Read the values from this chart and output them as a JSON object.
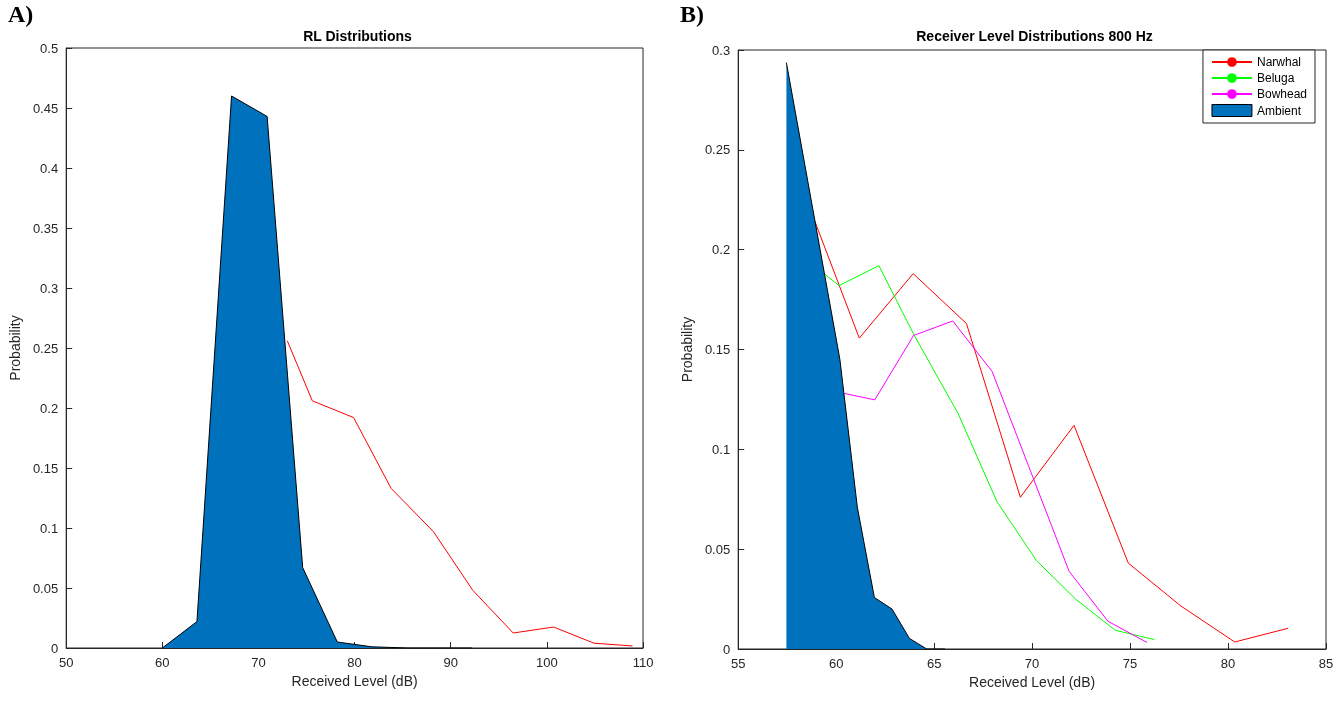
{
  "chart_data": [
    {
      "type": "line",
      "title": "RL Distributions",
      "xlabel": "Received Level (dB)",
      "ylabel": "Probability",
      "annotations": [
        "A)"
      ],
      "xlim": [
        50,
        110
      ],
      "xticks": [
        50,
        60,
        70,
        80,
        90,
        100,
        110
      ],
      "ylim": [
        0,
        0.5
      ],
      "yticks": [
        0,
        0.05,
        0.1,
        0.15,
        0.2,
        0.25,
        0.3,
        0.35,
        0.4,
        0.45,
        0.5
      ],
      "grid": false,
      "legend": false,
      "marker": "none",
      "line_style": "solid",
      "series": [
        {
          "color": "#ff0000",
          "x": [
            73,
            75.6,
            79.9,
            83.8,
            88.2,
            92.3,
            96.5,
            100.7,
            104.9,
            108.9
          ],
          "values": [
            0.256,
            0.206,
            0.192,
            0.133,
            0.097,
            0.048,
            0.0125,
            0.0175,
            0.004,
            0.0017
          ]
        },
        {
          "type": "area",
          "color": "#0072bd",
          "x": [
            60,
            63.6,
            67.2,
            70.9,
            74.6,
            78.2,
            81.8,
            85.5,
            92.2
          ],
          "values": [
            0,
            0.022,
            0.46,
            0.443,
            0.067,
            0.005,
            0.001,
            0,
            0
          ]
        }
      ]
    },
    {
      "type": "line",
      "title": "Receiver Level Distributions 800 Hz",
      "xlabel": "Received Level (dB)",
      "ylabel": "Probability",
      "annotations": [
        "B)"
      ],
      "xlim": [
        55,
        85
      ],
      "xticks": [
        55,
        60,
        65,
        70,
        75,
        80,
        85
      ],
      "ylim": [
        0,
        0.3
      ],
      "yticks": [
        0,
        0.05,
        0.1,
        0.15,
        0.2,
        0.25,
        0.3
      ],
      "grid": false,
      "legend": "top right",
      "marker": "none",
      "line_style": "solid",
      "series": [
        {
          "name": "Narwhal",
          "color": "#ff0000",
          "x": [
            58.9,
            61.18,
            63.93,
            66.65,
            69.4,
            72.14,
            74.91,
            77.6,
            80.34,
            83.07
          ],
          "values": [
            0.2145,
            0.1557,
            0.188,
            0.163,
            0.076,
            0.112,
            0.043,
            0.0215,
            0.0035,
            0.0104
          ]
        },
        {
          "name": "Beluga",
          "color": "#00ff00",
          "x": [
            59.32,
            60.15,
            62.18,
            63.99,
            66.22,
            68.21,
            70.23,
            72.24,
            74.24,
            76.24
          ],
          "values": [
            0.1885,
            0.182,
            0.192,
            0.157,
            0.118,
            0.0737,
            0.0442,
            0.0248,
            0.0094,
            0.0047
          ]
        },
        {
          "name": "Bowhead",
          "color": "#ff00ff",
          "x": [
            60.41,
            61.97,
            63.95,
            65.95,
            67.96,
            71.89,
            73.87,
            75.86
          ],
          "values": [
            0.128,
            0.1248,
            0.157,
            0.1643,
            0.139,
            0.0389,
            0.0139,
            0.0033
          ]
        },
        {
          "name": "Ambient",
          "type": "area",
          "color": "#0072bd",
          "x": [
            57.46,
            60.19,
            61.08,
            61.95,
            62.85,
            63.74,
            64.62,
            65.55
          ],
          "values": [
            0.2937,
            0.145,
            0.071,
            0.0258,
            0.02,
            0.0053,
            0,
            0
          ]
        }
      ]
    }
  ]
}
